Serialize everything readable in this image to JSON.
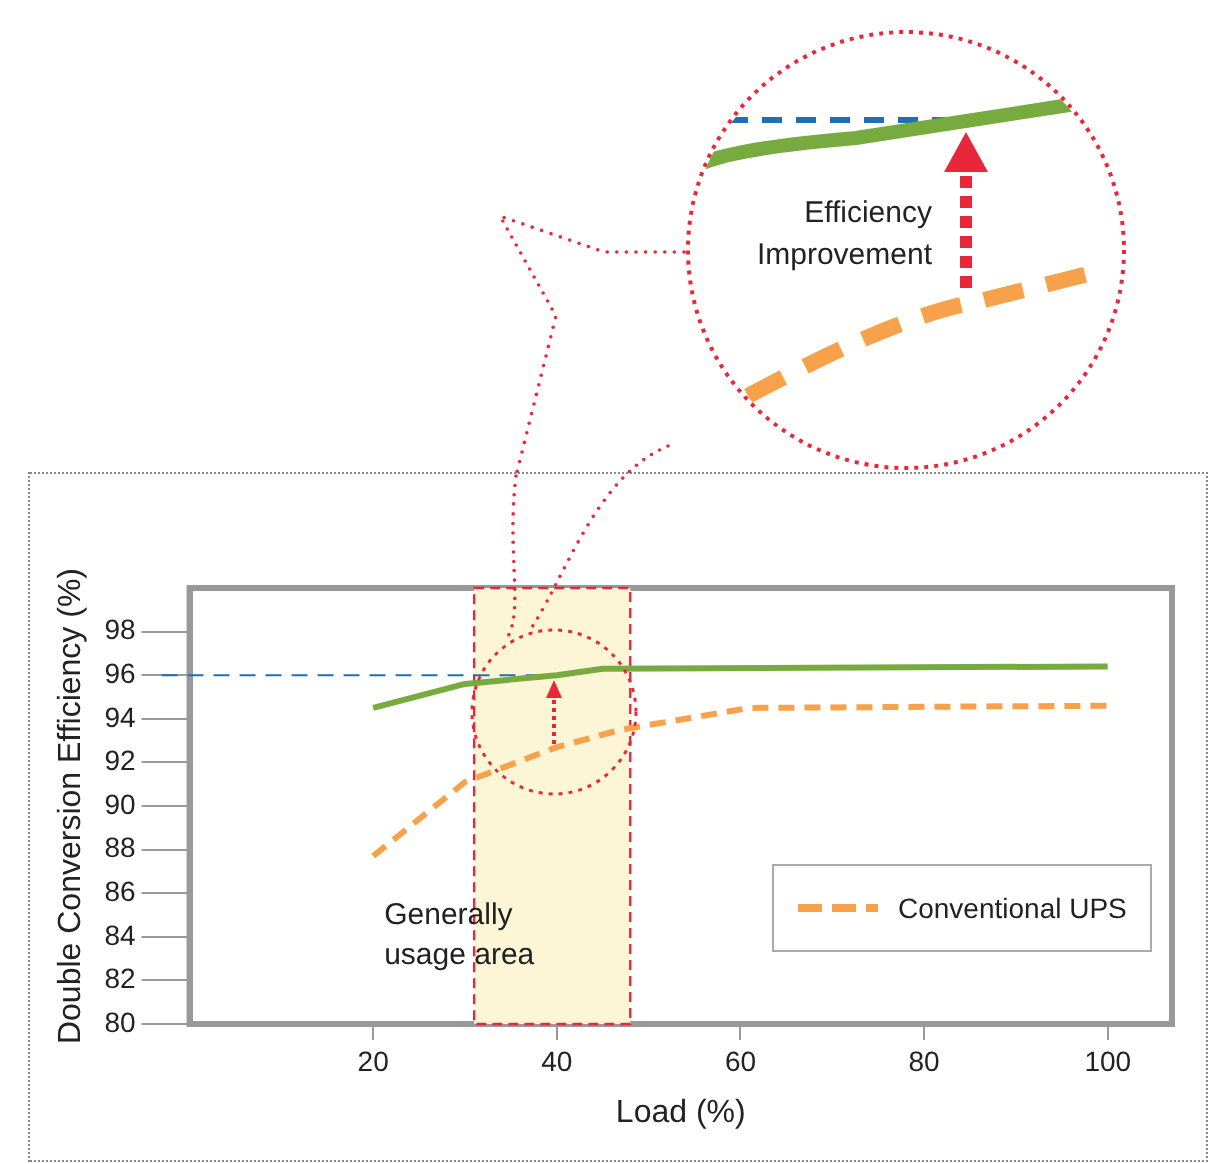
{
  "chart_data": {
    "type": "line",
    "xlabel": "Load (%)",
    "ylabel": "Double Conversion Efficiency (%)",
    "x": [
      20,
      30,
      40,
      45,
      100
    ],
    "series": [
      {
        "color": "#77ab3f",
        "values": [
          94.5,
          95.6,
          96.0,
          96.3,
          96.4
        ],
        "line_style": "solid"
      },
      {
        "name": "Conventional UPS",
        "color": "#f7a24b",
        "x": [
          20,
          30,
          40,
          47,
          61,
          100
        ],
        "values": [
          87.7,
          91.1,
          92.7,
          93.5,
          94.5,
          94.6
        ],
        "line_style": "dashed"
      }
    ],
    "xlim": [
      0,
      107
    ],
    "xticks": [
      20,
      40,
      60,
      80,
      100
    ],
    "ylim": [
      80,
      100
    ],
    "yticks": [
      80,
      82,
      84,
      86,
      88,
      90,
      92,
      94,
      96,
      98
    ],
    "bands": [
      {
        "axis": "x",
        "from": 31,
        "to": 48,
        "label": "Generally usage area",
        "color": "#fdf6d6"
      }
    ],
    "ref_lines": [
      {
        "axis": "y",
        "value": 96,
        "color": "#1f6fb5",
        "line_style": "dashed"
      }
    ],
    "annotations": [
      "Efficiency Improvement"
    ],
    "grid": false,
    "legend": "bottom right",
    "marker": "none"
  }
}
